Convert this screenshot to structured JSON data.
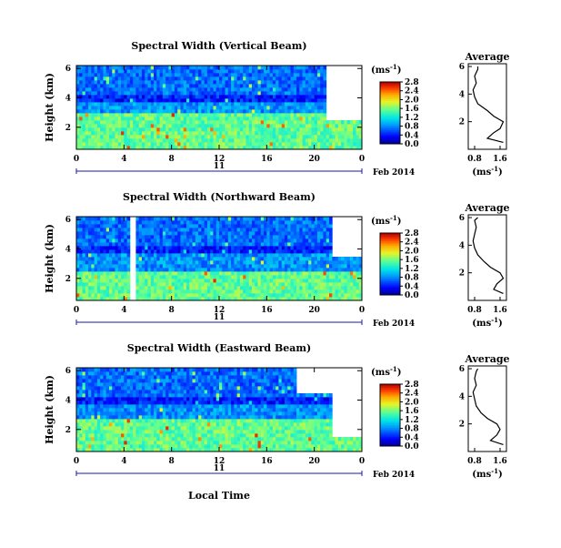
{
  "figure": {
    "ylabel": "Height (km)",
    "xlabel": "Local Time",
    "date_label": "Feb 2014",
    "day_label": "11",
    "avg_title": "Average",
    "unit_label": "(ms",
    "unit_exp": "-1",
    "unit_close": ")"
  },
  "chart_data": [
    {
      "type": "heatmap",
      "title": "Spectral Width (Vertical Beam)",
      "xlabel": "Local Time",
      "ylabel": "Height (km)",
      "x_ticks": [
        "0",
        "4",
        "8",
        "12",
        "16",
        "20",
        "0"
      ],
      "y_ticks": [
        "2",
        "4",
        "6"
      ],
      "xlim": [
        0,
        24
      ],
      "ylim": [
        0.5,
        6.2
      ],
      "colorbar_ticks": [
        "0.0",
        "0.4",
        "0.8",
        "1.2",
        "1.6",
        "2.0",
        "2.4",
        "2.8"
      ],
      "colorbar_range": [
        0,
        2.8
      ],
      "bands": [
        {
          "from": 0.5,
          "to": 3.0,
          "level": 0.55
        },
        {
          "from": 3.0,
          "to": 3.8,
          "level": 0.3
        },
        {
          "from": 3.8,
          "to": 4.3,
          "level": 0.15
        },
        {
          "from": 4.3,
          "to": 6.2,
          "level": 0.25
        }
      ],
      "gaps": [
        {
          "t0": 21.0,
          "t1": 24.0,
          "h0": 2.6,
          "h1": 6.2
        }
      ],
      "average": {
        "title": "Average",
        "xlim": [
          0.6,
          1.8
        ],
        "x_ticks": [
          "0.8",
          "1.6"
        ],
        "y_ticks": [
          "2",
          "4",
          "6"
        ],
        "heights": [
          0.5,
          0.8,
          1.2,
          1.5,
          2.0,
          2.4,
          2.8,
          3.3,
          3.8,
          4.3,
          4.8,
          5.3,
          5.8,
          6.0
        ],
        "values": [
          1.7,
          1.2,
          1.4,
          1.6,
          1.7,
          1.4,
          1.2,
          0.9,
          0.8,
          0.75,
          0.85,
          0.8,
          0.9,
          0.9
        ]
      }
    },
    {
      "type": "heatmap",
      "title": "Spectral Width (Northward Beam)",
      "xlabel": "Local Time",
      "ylabel": "Height (km)",
      "x_ticks": [
        "0",
        "4",
        "8",
        "12",
        "16",
        "20",
        "0"
      ],
      "y_ticks": [
        "2",
        "4",
        "6"
      ],
      "xlim": [
        0,
        24
      ],
      "ylim": [
        0.5,
        6.2
      ],
      "colorbar_ticks": [
        "0.0",
        "0.4",
        "0.8",
        "1.2",
        "1.6",
        "2.0",
        "2.4",
        "2.8"
      ],
      "colorbar_range": [
        0,
        2.8
      ],
      "bands": [
        {
          "from": 0.5,
          "to": 2.6,
          "level": 0.55
        },
        {
          "from": 2.6,
          "to": 3.6,
          "level": 0.3
        },
        {
          "from": 3.6,
          "to": 4.2,
          "level": 0.15
        },
        {
          "from": 4.2,
          "to": 6.2,
          "level": 0.25
        }
      ],
      "gaps": [
        {
          "t0": 4.6,
          "t1": 4.9,
          "h0": 0.5,
          "h1": 6.2
        },
        {
          "t0": 21.5,
          "t1": 24.0,
          "h0": 3.4,
          "h1": 6.2
        }
      ],
      "average": {
        "title": "Average",
        "xlim": [
          0.6,
          1.8
        ],
        "x_ticks": [
          "0.8",
          "1.6"
        ],
        "y_ticks": [
          "2",
          "4",
          "6"
        ],
        "heights": [
          0.5,
          0.8,
          1.2,
          1.6,
          2.0,
          2.4,
          2.8,
          3.3,
          3.8,
          4.3,
          4.8,
          5.3,
          5.8,
          6.0
        ],
        "values": [
          1.7,
          1.4,
          1.5,
          1.7,
          1.6,
          1.3,
          1.1,
          0.9,
          0.8,
          0.75,
          0.8,
          0.85,
          0.8,
          0.9
        ]
      }
    },
    {
      "type": "heatmap",
      "title": "Spectral Width (Eastward Beam)",
      "xlabel": "Local Time",
      "ylabel": "Height (km)",
      "x_ticks": [
        "0",
        "4",
        "8",
        "12",
        "16",
        "20",
        "0"
      ],
      "y_ticks": [
        "2",
        "4",
        "6"
      ],
      "xlim": [
        0,
        24
      ],
      "ylim": [
        0.5,
        6.2
      ],
      "colorbar_ticks": [
        "0.0",
        "0.4",
        "0.8",
        "1.2",
        "1.6",
        "2.0",
        "2.4",
        "2.8"
      ],
      "colorbar_range": [
        0,
        2.8
      ],
      "bands": [
        {
          "from": 0.5,
          "to": 2.8,
          "level": 0.55
        },
        {
          "from": 2.8,
          "to": 3.7,
          "level": 0.3
        },
        {
          "from": 3.7,
          "to": 4.2,
          "level": 0.15
        },
        {
          "from": 4.2,
          "to": 6.2,
          "level": 0.25
        }
      ],
      "gaps": [
        {
          "t0": 18.5,
          "t1": 24.0,
          "h0": 4.4,
          "h1": 6.2
        },
        {
          "t0": 21.5,
          "t1": 24.0,
          "h0": 1.5,
          "h1": 4.4
        }
      ],
      "average": {
        "title": "Average",
        "xlim": [
          0.6,
          1.8
        ],
        "x_ticks": [
          "0.8",
          "1.6"
        ],
        "y_ticks": [
          "2",
          "4",
          "6"
        ],
        "heights": [
          0.5,
          0.8,
          1.2,
          1.6,
          2.0,
          2.4,
          2.8,
          3.3,
          3.8,
          4.3,
          4.8,
          5.3,
          5.8,
          6.0
        ],
        "values": [
          1.7,
          1.3,
          1.5,
          1.6,
          1.5,
          1.2,
          1.0,
          0.85,
          0.8,
          0.75,
          0.85,
          0.8,
          0.85,
          0.9
        ]
      }
    }
  ]
}
